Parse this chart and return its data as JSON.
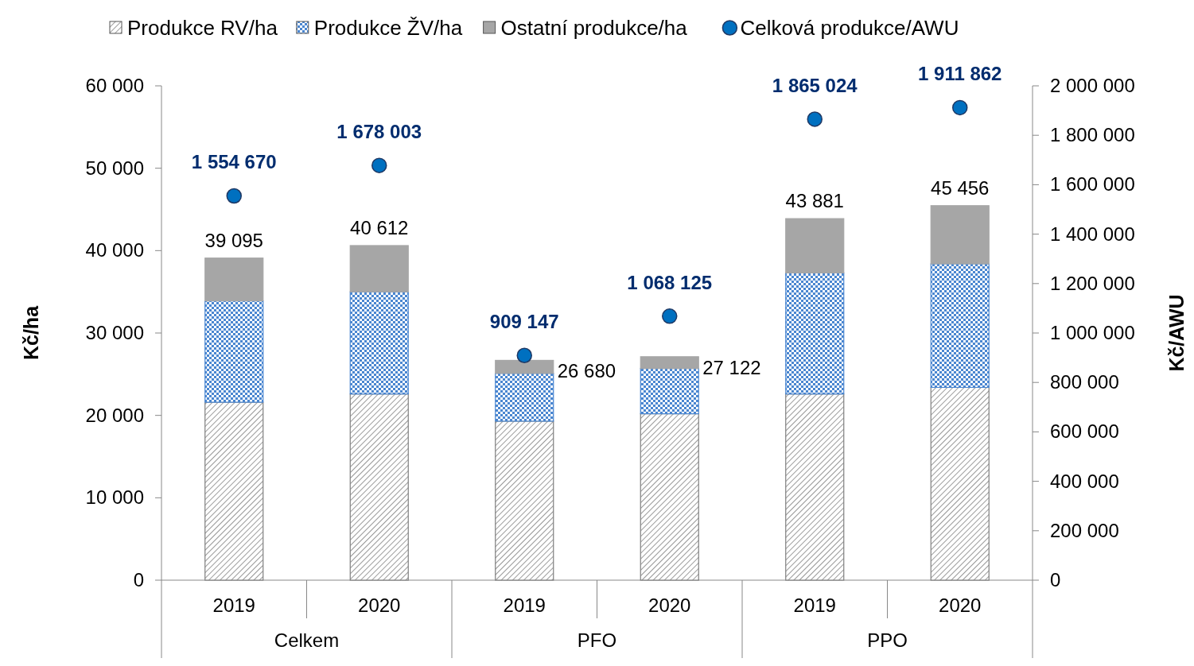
{
  "chart_data": {
    "type": "bar",
    "stacked": true,
    "categories": [
      "2019",
      "2020",
      "2019",
      "2020",
      "2019",
      "2020"
    ],
    "annotations": [
      "Celkem",
      "PFO",
      "PPO"
    ],
    "ylabel": "Kč/ha",
    "y2label": "Kč/AWU",
    "ylim": [
      0,
      60000
    ],
    "yticks": [
      0,
      {
        "value": 10000,
        "label": "10 000"
      },
      {
        "value": 20000,
        "label": "20 000"
      },
      {
        "value": 30000,
        "label": "30 000"
      },
      {
        "value": 40000,
        "label": "40 000"
      },
      {
        "value": 50000,
        "label": "50 000"
      },
      {
        "value": 60000,
        "label": "60 000"
      }
    ],
    "y2lim": [
      0,
      2000000
    ],
    "y2ticks": [
      0,
      {
        "value": 200000,
        "label": "200 000"
      },
      {
        "value": 400000,
        "label": "400 000"
      },
      {
        "value": 600000,
        "label": "600 000"
      },
      {
        "value": 800000,
        "label": "800 000"
      },
      {
        "value": 1000000,
        "label": "1 000 000"
      },
      {
        "value": 1200000,
        "label": "1 200 000"
      },
      {
        "value": 1400000,
        "label": "1 400 000"
      },
      {
        "value": 1600000,
        "label": "1 600 000"
      },
      {
        "value": 1800000,
        "label": "1 800 000"
      },
      {
        "value": 2000000,
        "label": "2 000 000"
      }
    ],
    "legend": "top",
    "totals": [
      "39 095",
      "40 612",
      "26 680",
      "27 122",
      "43 881",
      "45 456"
    ],
    "series": [
      {
        "name": "Produkce RV/ha",
        "color": "#7f7f7f",
        "values": [
          21600,
          22600,
          19300,
          20200,
          22600,
          23400
        ]
      },
      {
        "name": "Produkce ŽV/ha",
        "color": "#4a86d0",
        "values": [
          12300,
          12400,
          5800,
          5500,
          14700,
          15000
        ]
      },
      {
        "name": "Ostatní produkce/ha",
        "color": "#a6a6a6",
        "values": [
          5195,
          5612,
          1580,
          1422,
          6581,
          7056
        ]
      },
      {
        "name": "Celková produkce/AWU",
        "type": "scatter",
        "axis": "y2",
        "marker": "circle",
        "color": "#0070c0",
        "values": [
          1554670,
          1678003,
          909147,
          1068125,
          1865024,
          1911862
        ],
        "value_labels": [
          "1 554 670",
          "1 678 003",
          "909 147",
          "1 068 125",
          "1 865 024",
          "1 911 862"
        ]
      }
    ]
  }
}
